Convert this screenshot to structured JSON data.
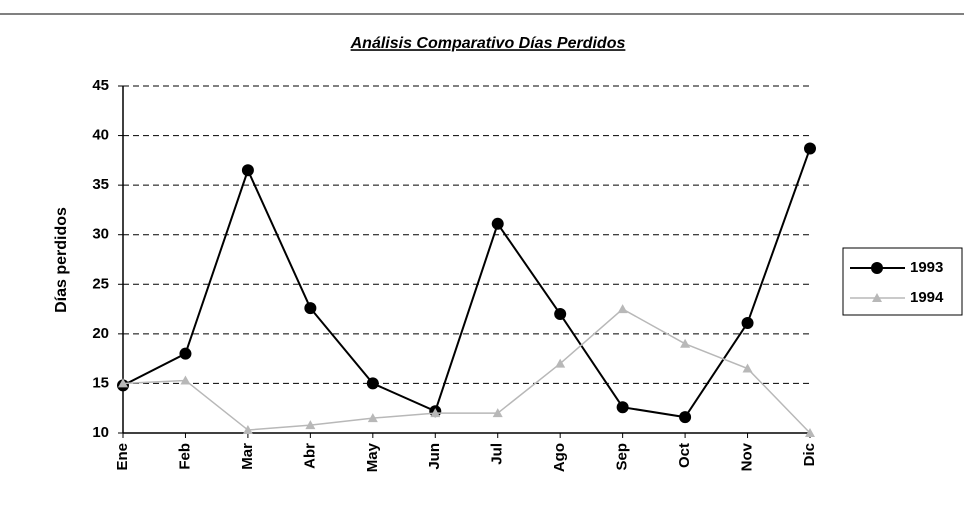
{
  "chart_data": {
    "type": "line",
    "title": "Análisis Comparativo Días Perdidos",
    "y_label": "Días perdidos",
    "categories": [
      "Ene",
      "Feb",
      "Mar",
      "Abr",
      "May",
      "Jun",
      "Jul",
      "Ago",
      "Sep",
      "Oct",
      "Nov",
      "Dic"
    ],
    "series": [
      {
        "name": "1993",
        "color": "#000000",
        "values": [
          14.8,
          18,
          36.5,
          22.6,
          15,
          12.2,
          31.1,
          22,
          12.6,
          11.6,
          21.1,
          38.7
        ]
      },
      {
        "name": "1994",
        "color": "#b8b8b8",
        "values": [
          15,
          15.3,
          10.3,
          10.8,
          11.5,
          12,
          12,
          17,
          22.5,
          19,
          16.5,
          10
        ]
      }
    ],
    "ylim": [
      10,
      45
    ],
    "yticks": [
      10,
      15,
      20,
      25,
      30,
      35,
      40,
      45
    ],
    "grid": true,
    "legend": "right"
  }
}
